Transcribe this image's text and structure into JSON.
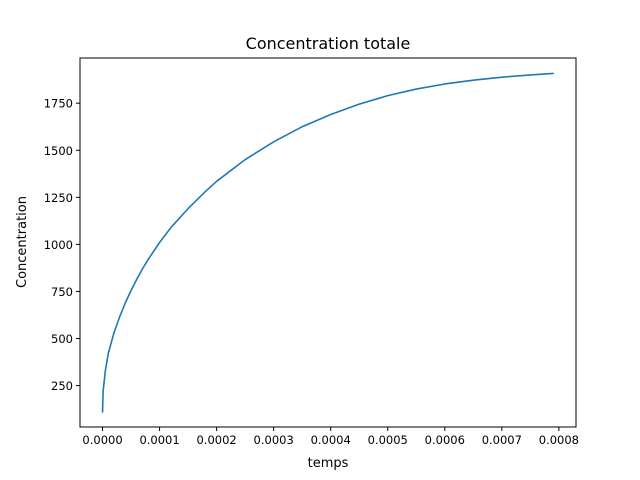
{
  "chart_data": {
    "type": "line",
    "title": "Concentration totale",
    "xlabel": "temps",
    "ylabel": "Concentration",
    "xlim": [
      -3.95e-05,
      0.00083
    ],
    "ylim": [
      30,
      1990
    ],
    "xticks": [
      0.0,
      0.0001,
      0.0002,
      0.0003,
      0.0004,
      0.0005,
      0.0006,
      0.0007,
      0.0008
    ],
    "xtick_labels": [
      "0.0000",
      "0.0001",
      "0.0002",
      "0.0003",
      "0.0004",
      "0.0005",
      "0.0006",
      "0.0007",
      "0.0008"
    ],
    "yticks": [
      250,
      500,
      750,
      1000,
      1250,
      1500,
      1750
    ],
    "ytick_labels": [
      "250",
      "500",
      "750",
      "1000",
      "1250",
      "1500",
      "1750"
    ],
    "grid": false,
    "series": [
      {
        "color": "#1f77b4",
        "x": [
          0.0,
          1e-06,
          5e-06,
          1e-05,
          2e-05,
          3e-05,
          4e-05,
          5e-05,
          6e-05,
          7e-05,
          8e-05,
          0.0001,
          0.00012,
          0.00015,
          0.00018,
          0.0002,
          0.00025,
          0.0003,
          0.00035,
          0.0004,
          0.00045,
          0.0005,
          0.00055,
          0.0006,
          0.00065,
          0.0007,
          0.00075,
          0.00079
        ],
        "y": [
          110,
          220,
          330,
          420,
          530,
          615,
          690,
          755,
          815,
          870,
          920,
          1010,
          1090,
          1190,
          1280,
          1335,
          1450,
          1545,
          1625,
          1690,
          1745,
          1790,
          1825,
          1852,
          1872,
          1888,
          1900,
          1908
        ]
      }
    ]
  }
}
